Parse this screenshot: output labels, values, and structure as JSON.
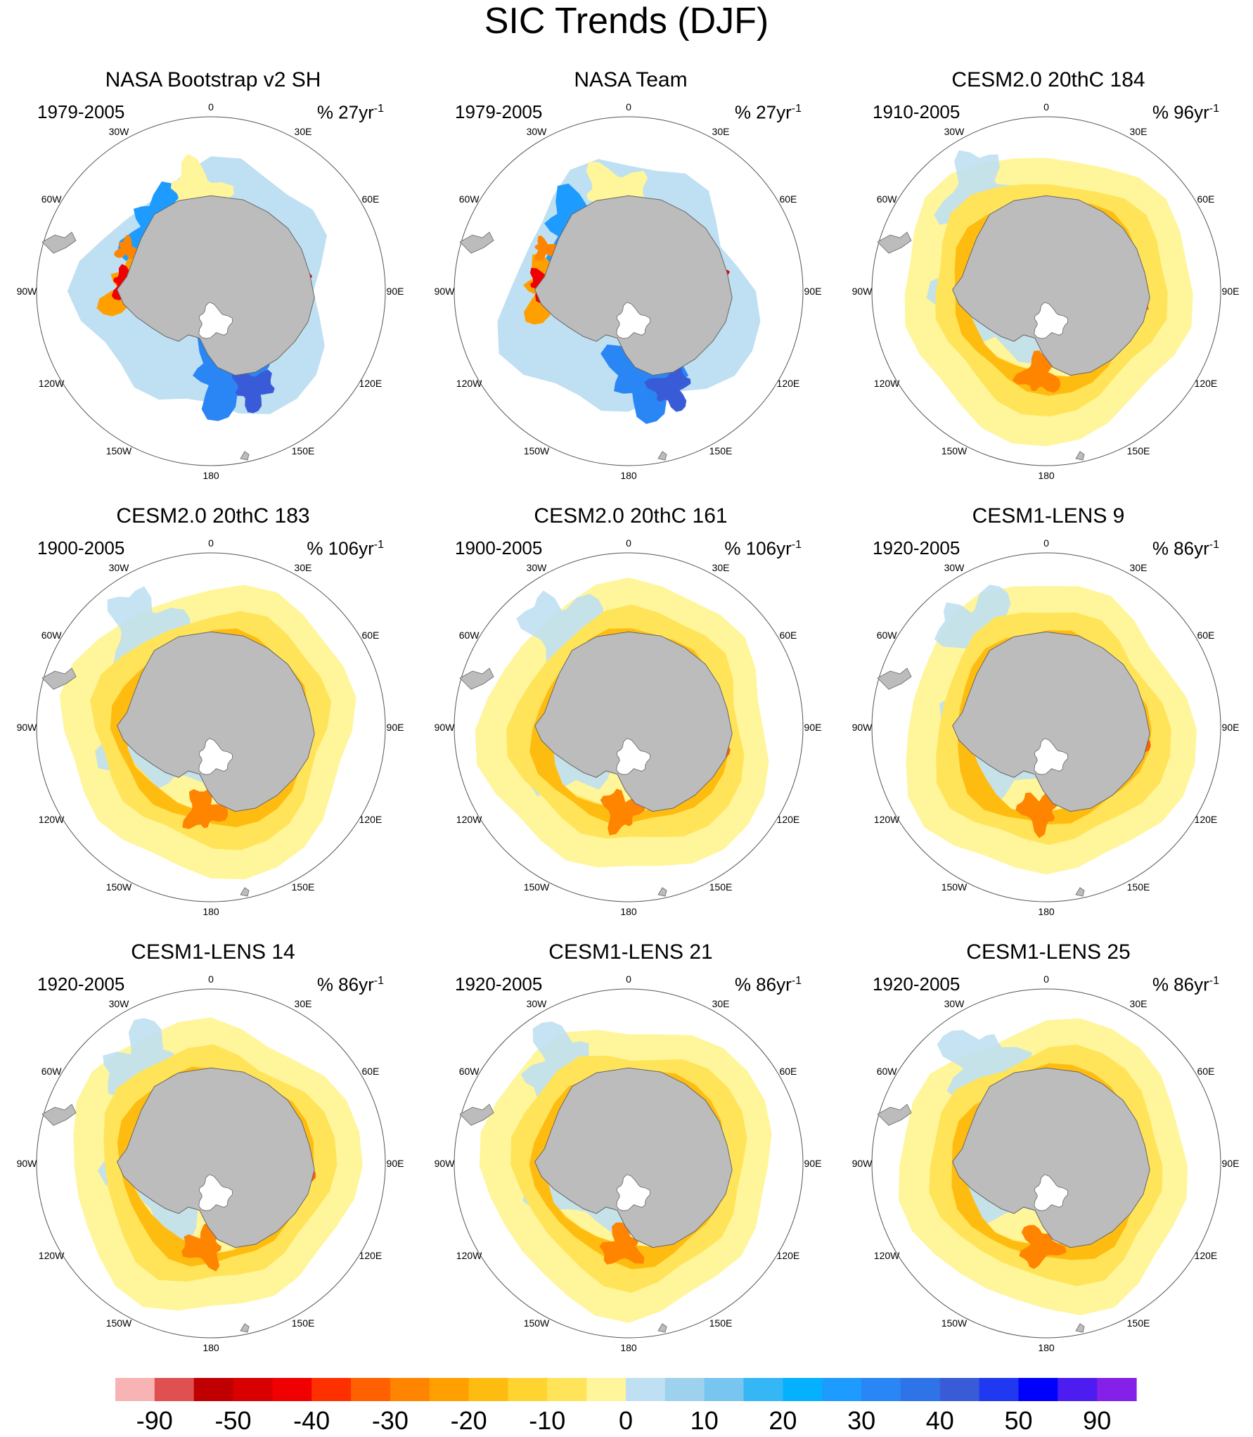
{
  "title": "SIC Trends (DJF)",
  "longitude_labels": [
    "0",
    "30E",
    "60E",
    "90E",
    "120E",
    "150E",
    "180",
    "150W",
    "120W",
    "90W",
    "60W",
    "30W"
  ],
  "panels": [
    {
      "title": "NASA Bootstrap v2 SH",
      "years": "1979-2005",
      "units": "% 27yr",
      "units_exp": "-1",
      "pattern": "obs1"
    },
    {
      "title": "NASA Team",
      "years": "1979-2005",
      "units": "% 27yr",
      "units_exp": "-1",
      "pattern": "obs2"
    },
    {
      "title": "CESM2.0 20thC 184",
      "years": "1910-2005",
      "units": "% 96yr",
      "units_exp": "-1",
      "pattern": "model"
    },
    {
      "title": "CESM2.0 20thC 183",
      "years": "1900-2005",
      "units": "% 106yr",
      "units_exp": "-1",
      "pattern": "model"
    },
    {
      "title": "CESM2.0 20thC 161",
      "years": "1900-2005",
      "units": "% 106yr",
      "units_exp": "-1",
      "pattern": "model"
    },
    {
      "title": "CESM1-LENS 9",
      "years": "1920-2005",
      "units": "% 86yr",
      "units_exp": "-1",
      "pattern": "model"
    },
    {
      "title": "CESM1-LENS 14",
      "years": "1920-2005",
      "units": "% 86yr",
      "units_exp": "-1",
      "pattern": "model"
    },
    {
      "title": "CESM1-LENS 21",
      "years": "1920-2005",
      "units": "% 86yr",
      "units_exp": "-1",
      "pattern": "model"
    },
    {
      "title": "CESM1-LENS 25",
      "years": "1920-2005",
      "units": "% 86yr",
      "units_exp": "-1",
      "pattern": "model"
    }
  ],
  "colorbar": {
    "colors": [
      "#f8b4b4",
      "#e05050",
      "#c00000",
      "#d80000",
      "#f00000",
      "#ff3000",
      "#ff6000",
      "#ff8400",
      "#ffa000",
      "#ffbc10",
      "#ffd430",
      "#ffe45a",
      "#fff59a",
      "#bfe0f2",
      "#9dd1ee",
      "#78c5f0",
      "#35b7f5",
      "#05b0ff",
      "#1e9bff",
      "#2a86f5",
      "#2f73e8",
      "#3a5bd8",
      "#1f38f0",
      "#0000ff",
      "#4d1cf0",
      "#8420e8"
    ],
    "labels": [
      "-90",
      "-50",
      "-40",
      "-30",
      "-20",
      "-10",
      "0",
      "10",
      "20",
      "30",
      "40",
      "50",
      "90"
    ]
  }
}
